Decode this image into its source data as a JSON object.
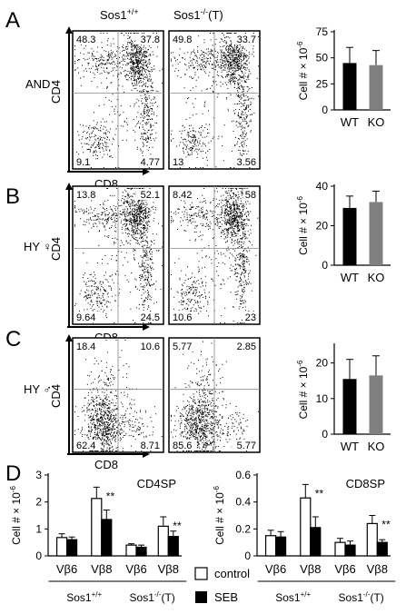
{
  "figure": {
    "panel_letters": [
      "A",
      "B",
      "C",
      "D"
    ],
    "genotype_headers": {
      "wt": "Sos1",
      "wt_sup": "+/+",
      "ko": "Sos1",
      "ko_sup": "-/-",
      "ko_suffix": "(T)"
    },
    "flow_axes": {
      "y": "CD4",
      "x": "CD8"
    },
    "rows": [
      {
        "label": "AND",
        "wt_quadrants": [
          "48.3",
          "37.8",
          "9.1",
          "4.77"
        ],
        "ko_quadrants": [
          "49.8",
          "33.7",
          "13",
          "3.56"
        ]
      },
      {
        "label": "HY ♀",
        "wt_quadrants": [
          "13.8",
          "52.1",
          "9.64",
          "24.5"
        ],
        "ko_quadrants": [
          "8.42",
          "58",
          "10.6",
          "23"
        ]
      },
      {
        "label": "HY ♂",
        "wt_quadrants": [
          "18.4",
          "10.6",
          "62.4",
          "8.71"
        ],
        "ko_quadrants": [
          "5.77",
          "2.85",
          "85.6",
          "5.77"
        ]
      }
    ],
    "legend": {
      "control": "control",
      "seb": "SEB"
    },
    "colors": {
      "wt_bar": "#000000",
      "ko_bar": "#808080",
      "seb_bar": "#000000",
      "control_bar": "#ffffff"
    }
  },
  "chart_data": [
    {
      "type": "bar",
      "panel": "A",
      "categories": [
        "WT",
        "KO"
      ],
      "values": [
        45,
        43
      ],
      "errors": [
        15,
        14
      ],
      "ylabel": "Cell # × 10",
      "ylabel_exp": "-6",
      "ylim": [
        0,
        75
      ],
      "yticks": [
        0,
        25,
        50,
        75
      ]
    },
    {
      "type": "bar",
      "panel": "B",
      "categories": [
        "WT",
        "KO"
      ],
      "values": [
        29,
        32
      ],
      "errors": [
        6,
        5.5
      ],
      "ylabel": "Cell # × 10",
      "ylabel_exp": "-6",
      "ylim": [
        0,
        40
      ],
      "yticks": [
        0,
        20,
        40
      ]
    },
    {
      "type": "bar",
      "panel": "C",
      "categories": [
        "WT",
        "KO"
      ],
      "values": [
        15.5,
        16.5
      ],
      "errors": [
        5.5,
        5.5
      ],
      "ylabel": "Cell # × 10",
      "ylabel_exp": "-6",
      "ylim": [
        0,
        25
      ],
      "yticks": [
        0,
        10,
        20
      ]
    },
    {
      "type": "bar",
      "panel": "D",
      "title": "CD4SP",
      "categories": [
        "Vβ6",
        "Vβ8",
        "Vβ6",
        "Vβ8"
      ],
      "groups": [
        {
          "label": "Sos1",
          "sup": "+/+",
          "suffix": ""
        },
        {
          "label": "Sos1",
          "sup": "-/-",
          "suffix": "(T)"
        }
      ],
      "series": [
        {
          "name": "control",
          "values": [
            0.68,
            2.13,
            0.4,
            1.1
          ],
          "errors": [
            0.14,
            0.42,
            0.05,
            0.35
          ]
        },
        {
          "name": "SEB",
          "values": [
            0.6,
            1.35,
            0.32,
            0.72
          ],
          "errors": [
            0.1,
            0.35,
            0.08,
            0.2
          ]
        }
      ],
      "significance": [
        "",
        "**",
        "",
        "**"
      ],
      "ylabel": "Cell # × 10",
      "ylabel_exp": "-6",
      "ylim": [
        0,
        3
      ],
      "yticks": [
        0,
        1,
        2,
        3
      ]
    },
    {
      "type": "bar",
      "panel": "D",
      "title": "CD8SP",
      "categories": [
        "Vβ6",
        "Vβ8",
        "Vβ6",
        "Vβ8"
      ],
      "groups": [
        {
          "label": "Sos1",
          "sup": "+/+",
          "suffix": ""
        },
        {
          "label": "Sos1",
          "sup": "-/-",
          "suffix": "(T)"
        }
      ],
      "series": [
        {
          "name": "control",
          "values": [
            0.15,
            0.43,
            0.1,
            0.24
          ],
          "errors": [
            0.04,
            0.1,
            0.03,
            0.06
          ]
        },
        {
          "name": "SEB",
          "values": [
            0.14,
            0.21,
            0.08,
            0.1
          ],
          "errors": [
            0.04,
            0.08,
            0.03,
            0.02
          ]
        }
      ],
      "significance": [
        "",
        "**",
        "",
        "**"
      ],
      "ylabel": "Cell # × 10",
      "ylabel_exp": "-6",
      "ylim": [
        0,
        0.6
      ],
      "yticks": [
        0,
        0.2,
        0.4,
        0.6
      ]
    }
  ]
}
